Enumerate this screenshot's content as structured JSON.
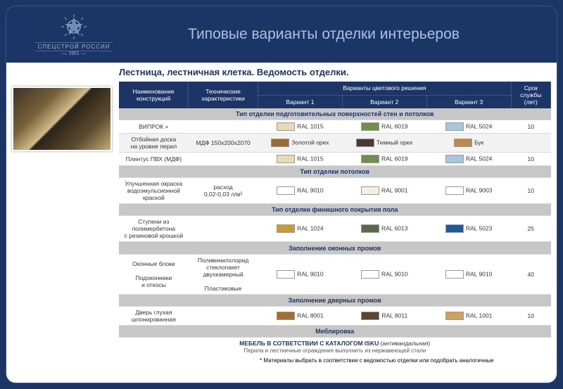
{
  "header": {
    "org_label": "СПЕЦСТРОЙ РОССИИ",
    "year": "— 1951 —",
    "title": "Типовые варианты отделки интерьеров"
  },
  "subtitle": "Лестница, лестничная клетка. Ведомость отделки.",
  "columns": {
    "name": "Наименование конструкций",
    "tech": "Технические характеристики",
    "variants_group": "Варианты цветового решения",
    "v1": "Вариант 1",
    "v2": "Вариант 2",
    "v3": "Вариант 3",
    "life": "Срок службы (лет)"
  },
  "sections": [
    {
      "title": "Тип отделки подготовительных поверхностей стен и потолков",
      "rows": [
        {
          "name_lines": [
            "ВИПРОК +"
          ],
          "tech_lines": [
            ""
          ],
          "v1": {
            "color": "#e9d9b4",
            "label": "RAL 1015"
          },
          "v2": {
            "color": "#6f8f4f",
            "label": "RAL 6019"
          },
          "v3": {
            "color": "#a7c7de",
            "label": "RAL 5024"
          },
          "life": "10"
        },
        {
          "name_lines": [
            "Отбойная доска",
            "на уровне перил"
          ],
          "tech_lines": [
            "МДФ 150x200x2070"
          ],
          "v1": {
            "color": "#9b6a2e",
            "label": "Золотой орех"
          },
          "v2": {
            "color": "#4a3a32",
            "label": "Темный орех"
          },
          "v3": {
            "color": "#b98b4f",
            "label": "Бук"
          },
          "life": ""
        },
        {
          "name_lines": [
            "Плинтус ПВХ (МДФ)"
          ],
          "tech_lines": [
            ""
          ],
          "v1": {
            "color": "#e9d9b4",
            "label": "RAL 1015"
          },
          "v2": {
            "color": "#6f8f4f",
            "label": "RAL 6019"
          },
          "v3": {
            "color": "#a7c7de",
            "label": "RAL 5024"
          },
          "life": "10"
        }
      ]
    },
    {
      "title": "Тип отделки потолков",
      "rows": [
        {
          "name_lines": [
            "Улучшенная окраска",
            "водоэмульсионной краской"
          ],
          "tech_lines": [
            "расход",
            "0,02-0,03 л/м²"
          ],
          "v1": {
            "color": "#ffffff",
            "label": "RAL 9010"
          },
          "v2": {
            "color": "#f6efe0",
            "label": "RAL 9001"
          },
          "v3": {
            "color": "#ffffff",
            "label": "RAL 9003"
          },
          "life": "10"
        }
      ]
    },
    {
      "title": "Тип отделки финишного покрытия пола",
      "rows": [
        {
          "name_lines": [
            "Ступени из полимербетона",
            "с резиновой крошкой"
          ],
          "tech_lines": [
            ""
          ],
          "v1": {
            "color": "#c79a3a",
            "label": "RAL 1024"
          },
          "v2": {
            "color": "#5a6a48",
            "label": "RAL 6013"
          },
          "v3": {
            "color": "#1f5a9a",
            "label": "RAL 5023"
          },
          "life": "25"
        }
      ]
    },
    {
      "title": "Заполнение оконных промов",
      "rows": [
        {
          "name_lines": [
            "Оконные блоки",
            " ",
            "Подоконники",
            "и откосы"
          ],
          "tech_lines": [
            "Поливинилхлорид",
            "стеклопакет двухкамерный",
            " ",
            "Пластиковые"
          ],
          "v1": {
            "color": "#ffffff",
            "label": "RAL 9010"
          },
          "v2": {
            "color": "#ffffff",
            "label": "RAL 9010"
          },
          "v3": {
            "color": "#ffffff",
            "label": "RAL 9010"
          },
          "life": "40"
        }
      ]
    },
    {
      "title": "Заполнение дверных промов",
      "rows": [
        {
          "name_lines": [
            "Дверь глухая",
            "шпонированная"
          ],
          "tech_lines": [
            ""
          ],
          "v1": {
            "color": "#a36f2f",
            "label": "RAL 8001"
          },
          "v2": {
            "color": "#5c4632",
            "label": "RAL 8011"
          },
          "v3": {
            "color": "#cda35c",
            "label": "RAL 1001"
          },
          "life": "10"
        }
      ]
    }
  ],
  "furniture_section": {
    "title": "Меблировка",
    "line1_a": "МЕБЕЛЬ В СОТВЕТСТВИИ С КАТАЛОГОМ ISKU ",
    "line1_b": "(антивандальная)",
    "line2": "Перила и лестничные ограждения выполнить из нержавеющей стали"
  },
  "footnote": "* Материалы выбрать в соответствии с ведомостью отделки или подобрать аналогичные",
  "colors": {
    "frame_bg": "#1a3566",
    "band_bg": "#c7c7c7",
    "header_text": "#acc2e2"
  }
}
